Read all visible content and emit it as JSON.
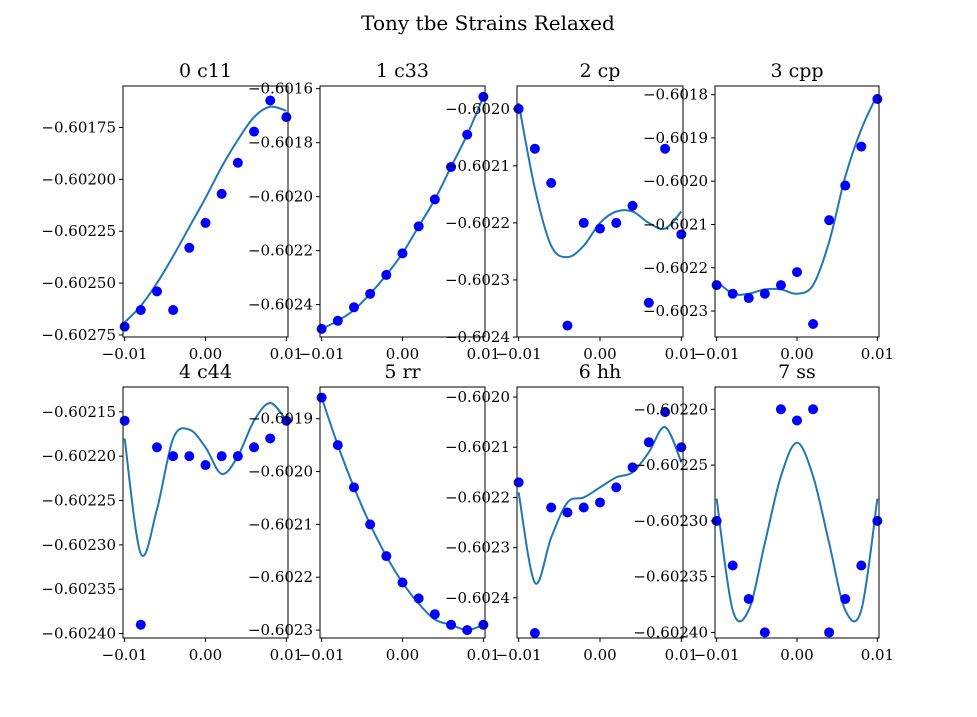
{
  "title": "Tony tbe Strains Relaxed",
  "colors": {
    "curve": "#1f77b4",
    "points": "#0000ff"
  },
  "chart_data": [
    {
      "type": "scatter",
      "title": "0 c11",
      "x": [
        -0.01,
        -0.008,
        -0.006,
        -0.004,
        -0.002,
        0.0,
        0.002,
        0.004,
        0.006,
        0.008,
        0.01
      ],
      "y": [
        -0.60271,
        -0.60263,
        -0.60254,
        -0.60263,
        -0.60233,
        -0.60221,
        -0.60207,
        -0.60192,
        -0.60177,
        -0.60162,
        -0.6017
      ],
      "fit": [
        -0.60269,
        -0.60261,
        -0.6025,
        -0.60237,
        -0.60223,
        -0.60209,
        -0.60194,
        -0.60181,
        -0.6017,
        -0.60165,
        -0.60167
      ],
      "xlim": [
        -0.0102,
        0.0102
      ],
      "ylim": [
        -0.60276,
        -0.60155
      ],
      "xticks": [
        -0.01,
        0.0,
        0.01
      ],
      "xtick_labels": [
        "−0.01",
        "0.00",
        "0.01"
      ],
      "yticks": [
        -0.60275,
        -0.6025,
        -0.60225,
        -0.602,
        -0.60175
      ],
      "ytick_labels": [
        "−0.60275",
        "−0.60250",
        "−0.60225",
        "−0.60200",
        "−0.60175"
      ]
    },
    {
      "type": "scatter",
      "title": "1 c33",
      "x": [
        -0.01,
        -0.008,
        -0.006,
        -0.004,
        -0.002,
        0.0,
        0.002,
        0.004,
        0.006,
        0.008,
        0.01
      ],
      "y": [
        -0.60249,
        -0.60246,
        -0.60241,
        -0.60236,
        -0.60229,
        -0.60221,
        -0.60211,
        -0.60201,
        -0.60189,
        -0.60177,
        -0.60163
      ],
      "fit": [
        -0.60249,
        -0.60246,
        -0.60242,
        -0.60236,
        -0.60229,
        -0.60221,
        -0.60211,
        -0.60201,
        -0.60189,
        -0.60177,
        -0.60163
      ],
      "xlim": [
        -0.0102,
        0.0102
      ],
      "ylim": [
        -0.60252,
        -0.60159
      ],
      "xticks": [
        -0.01,
        0.0,
        0.01
      ],
      "xtick_labels": [
        "−0.01",
        "0.00",
        "0.01"
      ],
      "yticks": [
        -0.6024,
        -0.6022,
        -0.602,
        -0.6018,
        -0.6016
      ],
      "ytick_labels": [
        "−0.6024",
        "−0.6022",
        "−0.6020",
        "−0.6018",
        "−0.6016"
      ]
    },
    {
      "type": "scatter",
      "title": "2 cp",
      "x": [
        -0.01,
        -0.008,
        -0.006,
        -0.004,
        -0.002,
        0.0,
        0.002,
        0.004,
        0.006,
        0.008,
        0.01
      ],
      "y": [
        -0.602,
        -0.60207,
        -0.60213,
        -0.60238,
        -0.6022,
        -0.60221,
        -0.6022,
        -0.60217,
        -0.60234,
        -0.60207,
        -0.60222
      ],
      "fit": [
        -0.60199,
        -0.60214,
        -0.60224,
        -0.60226,
        -0.60224,
        -0.6022,
        -0.60218,
        -0.60218,
        -0.6022,
        -0.60221,
        -0.60218
      ],
      "xlim": [
        -0.0102,
        0.0102
      ],
      "ylim": [
        -0.6024,
        -0.60196
      ],
      "xticks": [
        -0.01,
        0.0,
        0.01
      ],
      "xtick_labels": [
        "−0.01",
        "0.00",
        "0.01"
      ],
      "yticks": [
        -0.6024,
        -0.6023,
        -0.6022,
        -0.6021,
        -0.602
      ],
      "ytick_labels": [
        "−0.6024",
        "−0.6023",
        "−0.6022",
        "−0.6021",
        "−0.6020"
      ]
    },
    {
      "type": "scatter",
      "title": "3 cpp",
      "x": [
        -0.01,
        -0.008,
        -0.006,
        -0.004,
        -0.002,
        0.0,
        0.002,
        0.004,
        0.006,
        0.008,
        0.01
      ],
      "y": [
        -0.60224,
        -0.60226,
        -0.60227,
        -0.60226,
        -0.60224,
        -0.60221,
        -0.60233,
        -0.60209,
        -0.60201,
        -0.60192,
        -0.60181
      ],
      "fit": [
        -0.60223,
        -0.60226,
        -0.60226,
        -0.60225,
        -0.60225,
        -0.60226,
        -0.60224,
        -0.60214,
        -0.60199,
        -0.60188,
        -0.6018
      ],
      "xlim": [
        -0.0102,
        0.0102
      ],
      "ylim": [
        -0.60236,
        -0.60178
      ],
      "xticks": [
        -0.01,
        0.0,
        0.01
      ],
      "xtick_labels": [
        "−0.01",
        "0.00",
        "0.01"
      ],
      "yticks": [
        -0.6023,
        -0.6022,
        -0.6021,
        -0.602,
        -0.6019,
        -0.6018
      ],
      "ytick_labels": [
        "−0.6023",
        "−0.6022",
        "−0.6021",
        "−0.6020",
        "−0.6019",
        "−0.6018"
      ]
    },
    {
      "type": "scatter",
      "title": "4 c44",
      "x": [
        -0.01,
        -0.008,
        -0.006,
        -0.004,
        -0.002,
        0.0,
        0.002,
        0.004,
        0.006,
        0.008,
        0.01
      ],
      "y": [
        -0.60216,
        -0.60239,
        -0.60219,
        -0.6022,
        -0.6022,
        -0.60221,
        -0.6022,
        -0.6022,
        -0.60219,
        -0.60218,
        -0.60216
      ],
      "fit": [
        -0.60218,
        -0.60231,
        -0.60226,
        -0.60218,
        -0.60217,
        -0.60219,
        -0.60222,
        -0.6022,
        -0.60216,
        -0.60214,
        -0.60216
      ],
      "xlim": [
        -0.0102,
        0.0102
      ],
      "ylim": [
        -0.602405,
        -0.602122
      ],
      "xticks": [
        -0.01,
        0.0,
        0.01
      ],
      "xtick_labels": [
        "−0.01",
        "0.00",
        "0.01"
      ],
      "yticks": [
        -0.6024,
        -0.60235,
        -0.6023,
        -0.60225,
        -0.6022,
        -0.60215
      ],
      "ytick_labels": [
        "−0.60240",
        "−0.60235",
        "−0.60230",
        "−0.60225",
        "−0.60220",
        "−0.60215"
      ]
    },
    {
      "type": "scatter",
      "title": "5 rr",
      "x": [
        -0.01,
        -0.008,
        -0.006,
        -0.004,
        -0.002,
        0.0,
        0.002,
        0.004,
        0.006,
        0.008,
        0.01
      ],
      "y": [
        -0.60186,
        -0.60195,
        -0.60203,
        -0.6021,
        -0.60216,
        -0.60221,
        -0.60224,
        -0.60227,
        -0.60229,
        -0.6023,
        -0.60229
      ],
      "fit": [
        -0.60186,
        -0.60195,
        -0.60203,
        -0.6021,
        -0.60216,
        -0.60221,
        -0.60225,
        -0.60228,
        -0.60229,
        -0.6023,
        -0.60229
      ],
      "xlim": [
        -0.0102,
        0.0102
      ],
      "ylim": [
        -0.602315,
        -0.60184
      ],
      "xticks": [
        -0.01,
        0.0,
        0.01
      ],
      "xtick_labels": [
        "−0.01",
        "0.00",
        "0.01"
      ],
      "yticks": [
        -0.6023,
        -0.6022,
        -0.6021,
        -0.602,
        -0.6019
      ],
      "ytick_labels": [
        "−0.6023",
        "−0.6022",
        "−0.6021",
        "−0.6020",
        "−0.6019"
      ]
    },
    {
      "type": "scatter",
      "title": "6 hh",
      "x": [
        -0.01,
        -0.008,
        -0.006,
        -0.004,
        -0.002,
        0.0,
        0.002,
        0.004,
        0.006,
        0.008,
        0.01
      ],
      "y": [
        -0.60217,
        -0.60247,
        -0.60222,
        -0.60223,
        -0.60222,
        -0.60221,
        -0.60218,
        -0.60214,
        -0.60209,
        -0.60203,
        -0.6021
      ],
      "fit": [
        -0.60219,
        -0.60237,
        -0.60228,
        -0.60221,
        -0.6022,
        -0.60218,
        -0.60216,
        -0.60215,
        -0.60211,
        -0.60206,
        -0.60213
      ],
      "xlim": [
        -0.0102,
        0.0102
      ],
      "ylim": [
        -0.60248,
        -0.60198
      ],
      "xticks": [
        -0.01,
        0.0,
        0.01
      ],
      "xtick_labels": [
        "−0.01",
        "0.00",
        "0.01"
      ],
      "yticks": [
        -0.6024,
        -0.6023,
        -0.6022,
        -0.6021,
        -0.602
      ],
      "ytick_labels": [
        "−0.6024",
        "−0.6023",
        "−0.6022",
        "−0.6021",
        "−0.6020"
      ]
    },
    {
      "type": "scatter",
      "title": "7 ss",
      "x": [
        -0.01,
        -0.008,
        -0.006,
        -0.004,
        -0.002,
        0.0,
        0.002,
        0.004,
        0.006,
        0.008,
        0.01
      ],
      "y": [
        -0.6023,
        -0.60234,
        -0.60237,
        -0.6024,
        -0.6022,
        -0.60221,
        -0.6022,
        -0.6024,
        -0.60237,
        -0.60234,
        -0.6023
      ],
      "fit": [
        -0.60228,
        -0.60238,
        -0.60238,
        -0.60232,
        -0.60226,
        -0.60223,
        -0.60226,
        -0.60232,
        -0.60238,
        -0.60238,
        -0.60228
      ],
      "xlim": [
        -0.0102,
        0.0102
      ],
      "ylim": [
        -0.602405,
        -0.60218
      ],
      "xticks": [
        -0.01,
        0.0,
        0.01
      ],
      "xtick_labels": [
        "−0.01",
        "0.00",
        "0.01"
      ],
      "yticks": [
        -0.6024,
        -0.60235,
        -0.6023,
        -0.60225,
        -0.6022
      ],
      "ytick_labels": [
        "−0.60240",
        "−0.60235",
        "−0.60230",
        "−0.60225",
        "−0.60220"
      ]
    }
  ]
}
